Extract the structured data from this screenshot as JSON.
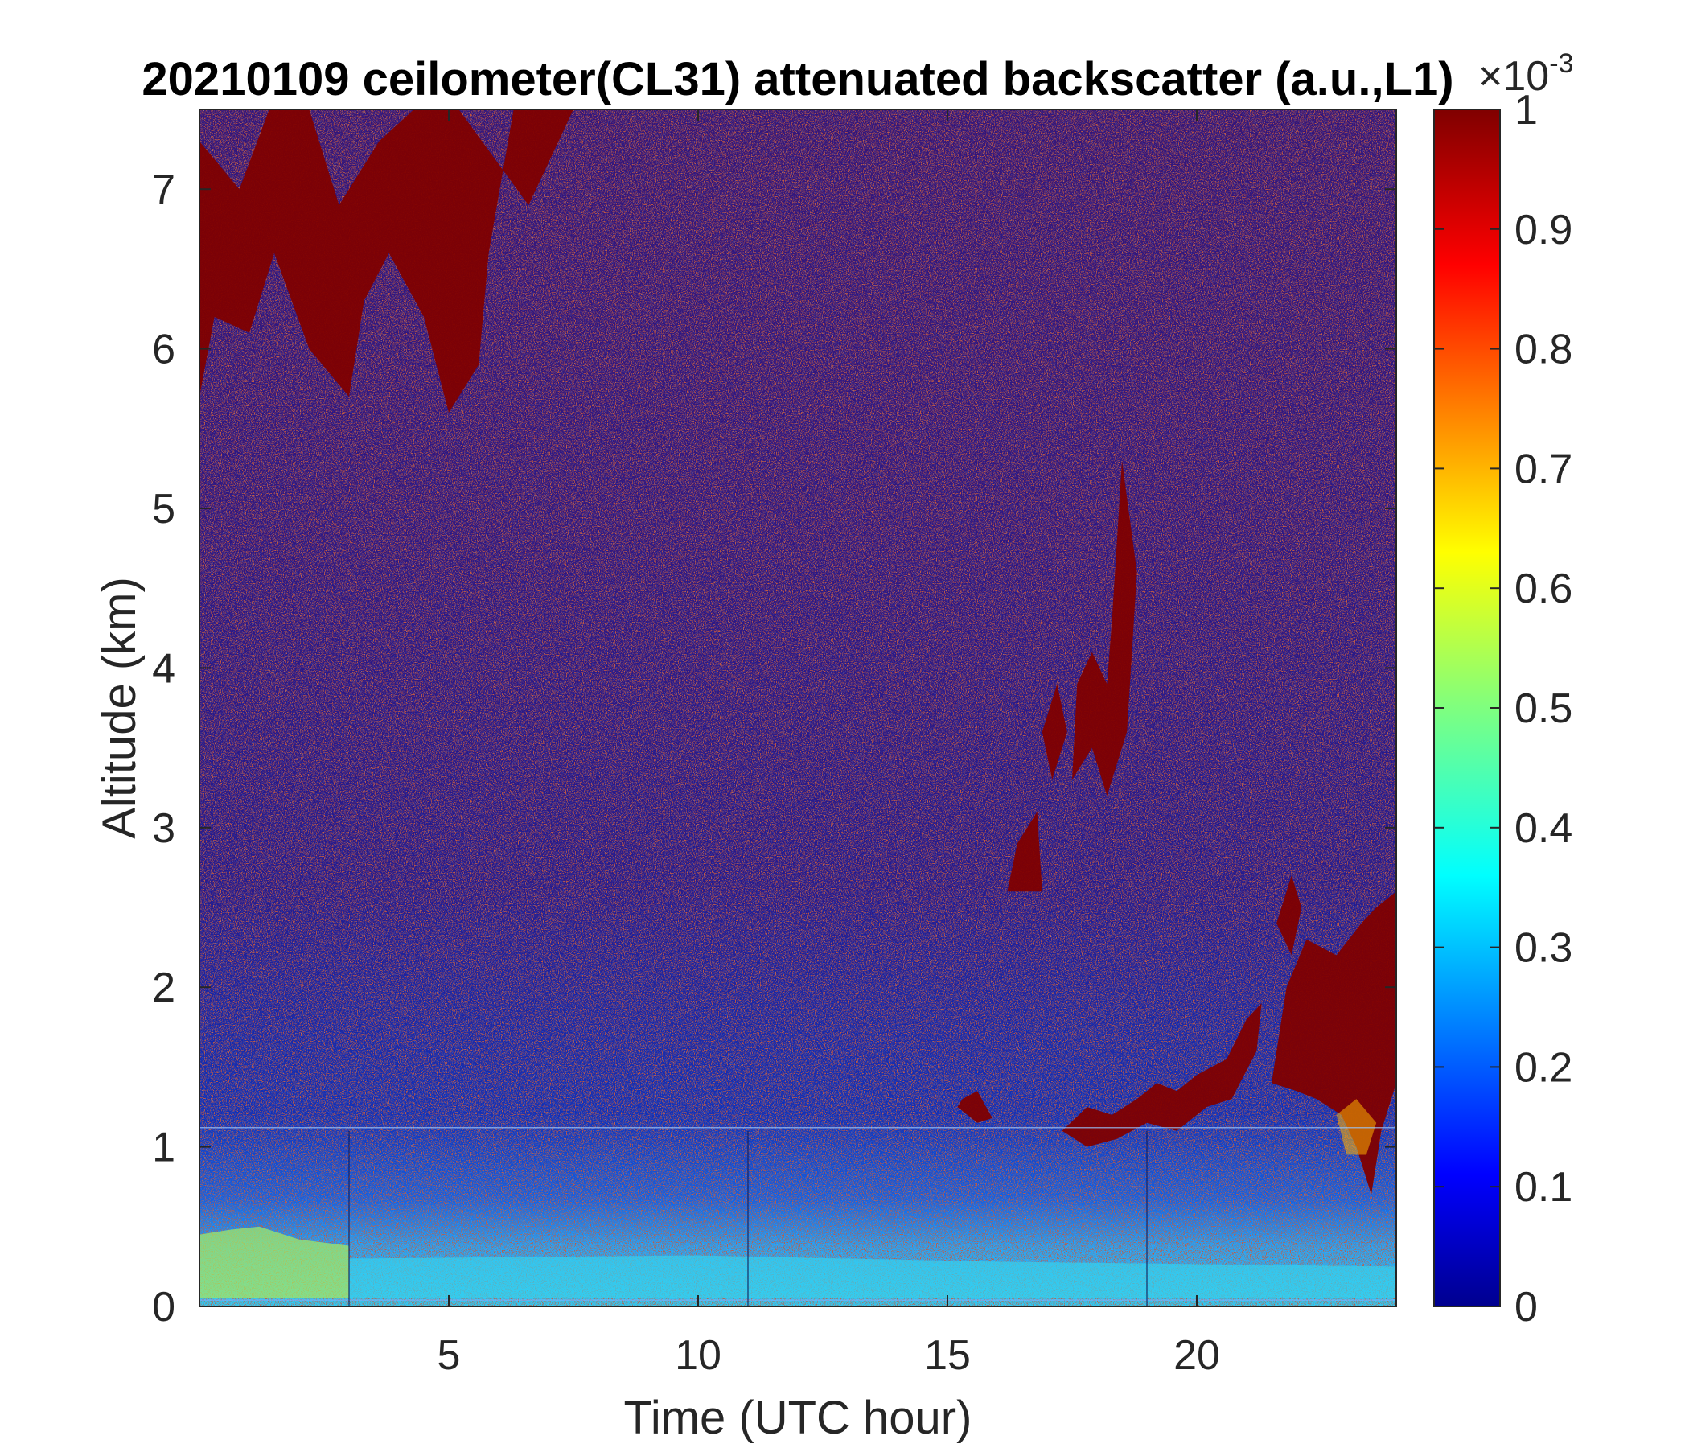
{
  "chart_data": {
    "type": "heatmap",
    "title": "20210109 ceilometer(CL31) attenuated backscatter (a.u.,L1)",
    "xlabel": "Time (UTC hour)",
    "ylabel": "Altitude (km)",
    "xlim": [
      0,
      24
    ],
    "ylim": [
      0,
      7.5
    ],
    "x_ticks": [
      5,
      10,
      15,
      20
    ],
    "x_tick_labels": [
      "5",
      "10",
      "15",
      "20"
    ],
    "y_ticks": [
      0,
      1,
      2,
      3,
      4,
      5,
      6,
      7
    ],
    "y_tick_labels": [
      "0",
      "1",
      "2",
      "3",
      "4",
      "5",
      "6",
      "7"
    ],
    "colorbar": {
      "colormap": "jet",
      "range": [
        0,
        0.001
      ],
      "exponent_label": "×10",
      "exponent_power": "-3",
      "ticks": [
        0,
        0.1,
        0.2,
        0.3,
        0.4,
        0.5,
        0.6,
        0.7,
        0.8,
        0.9,
        1
      ],
      "tick_labels": [
        "0",
        "0.1",
        "0.2",
        "0.3",
        "0.4",
        "0.5",
        "0.6",
        "0.7",
        "0.8",
        "0.9",
        "1"
      ]
    },
    "features": {
      "surface_aerosol_layer_km": [
        0,
        0.5
      ],
      "upper_cirrus_0_7h_km": [
        5.5,
        7.5
      ],
      "low_cloud_15_24h_km": [
        1,
        1.5
      ],
      "mid_cloud_16_19h_km": [
        2.5,
        5.3
      ],
      "late_cloud_21_24h_km": [
        0.7,
        2.6
      ]
    },
    "colors": {
      "high": "#800000",
      "low": "#00008f",
      "mid": "#7fff7f"
    }
  }
}
